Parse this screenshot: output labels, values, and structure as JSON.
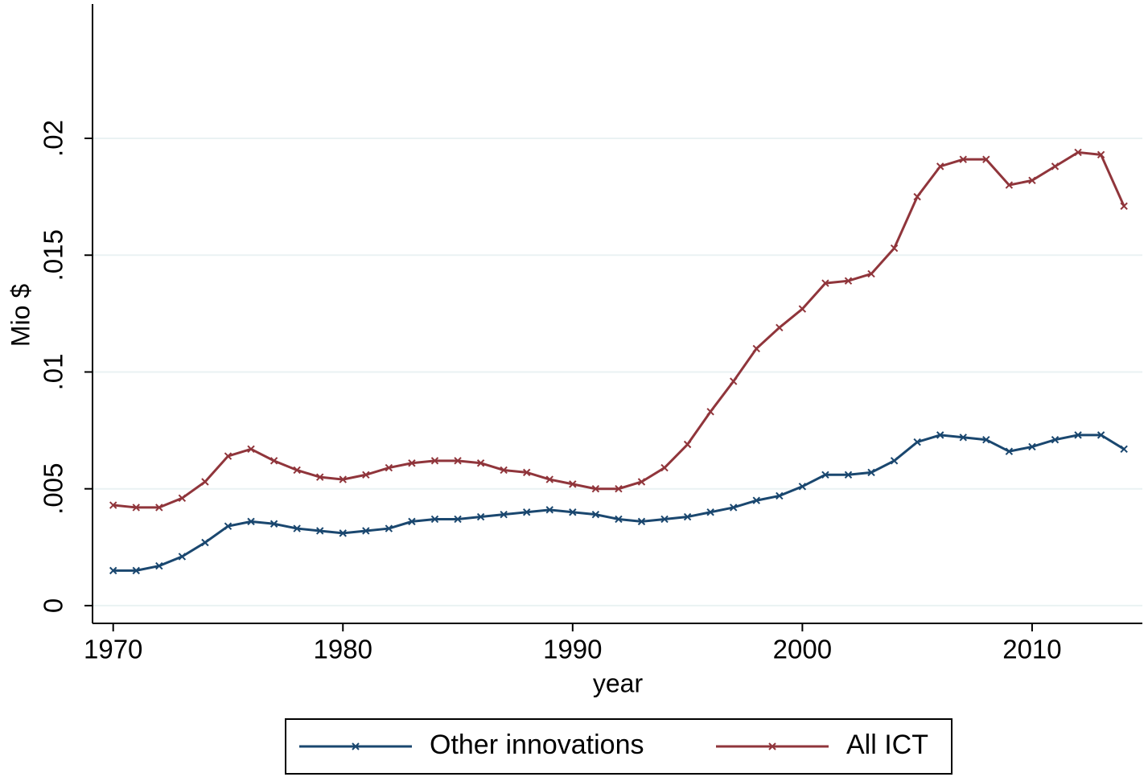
{
  "chart_data": {
    "type": "line",
    "x_label": "year",
    "y_label": "Mio $",
    "x": [
      1970,
      1971,
      1972,
      1973,
      1974,
      1975,
      1976,
      1977,
      1978,
      1979,
      1980,
      1981,
      1982,
      1983,
      1984,
      1985,
      1986,
      1987,
      1988,
      1989,
      1990,
      1991,
      1992,
      1993,
      1994,
      1995,
      1996,
      1997,
      1998,
      1999,
      2000,
      2001,
      2002,
      2003,
      2004,
      2005,
      2006,
      2007,
      2008,
      2009,
      2010,
      2011,
      2012,
      2013,
      2014
    ],
    "series": [
      {
        "name": "Other innovations",
        "color": "#1a476f",
        "values": [
          0.0015,
          0.0015,
          0.0017,
          0.0021,
          0.0027,
          0.0034,
          0.0036,
          0.0035,
          0.0033,
          0.0032,
          0.0031,
          0.0032,
          0.0033,
          0.0036,
          0.0037,
          0.0037,
          0.0038,
          0.0039,
          0.004,
          0.0041,
          0.004,
          0.0039,
          0.0037,
          0.0036,
          0.0037,
          0.0038,
          0.004,
          0.0042,
          0.0045,
          0.0047,
          0.0051,
          0.0056,
          0.0056,
          0.0057,
          0.0062,
          0.007,
          0.0073,
          0.0072,
          0.0071,
          0.0066,
          0.0068,
          0.0071,
          0.0073,
          0.0073,
          0.0067
        ]
      },
      {
        "name": "All ICT",
        "color": "#90353b",
        "values": [
          0.0043,
          0.0042,
          0.0042,
          0.0046,
          0.0053,
          0.0064,
          0.0067,
          0.0062,
          0.0058,
          0.0055,
          0.0054,
          0.0056,
          0.0059,
          0.0061,
          0.0062,
          0.0062,
          0.0061,
          0.0058,
          0.0057,
          0.0054,
          0.0052,
          0.005,
          0.005,
          0.0053,
          0.0059,
          0.0069,
          0.0083,
          0.0096,
          0.011,
          0.0119,
          0.0127,
          0.0138,
          0.0139,
          0.0142,
          0.0153,
          0.0175,
          0.0188,
          0.0191,
          0.0191,
          0.018,
          0.0182,
          0.0188,
          0.0194,
          0.0193,
          0.0171
        ]
      }
    ],
    "xlim": [
      1969.1,
      2014.8
    ],
    "xticks": [
      1970,
      1980,
      1990,
      2000,
      2010
    ],
    "ylim": [
      -0.00076,
      0.02575
    ],
    "yticks": [
      0,
      {
        "value": 0.005,
        "label": ".005"
      },
      {
        "value": 0.01,
        "label": ".01"
      },
      {
        "value": 0.015,
        "label": ".015"
      },
      {
        "value": 0.02,
        "label": ".02"
      }
    ],
    "grid": true,
    "legend": "bottom"
  }
}
